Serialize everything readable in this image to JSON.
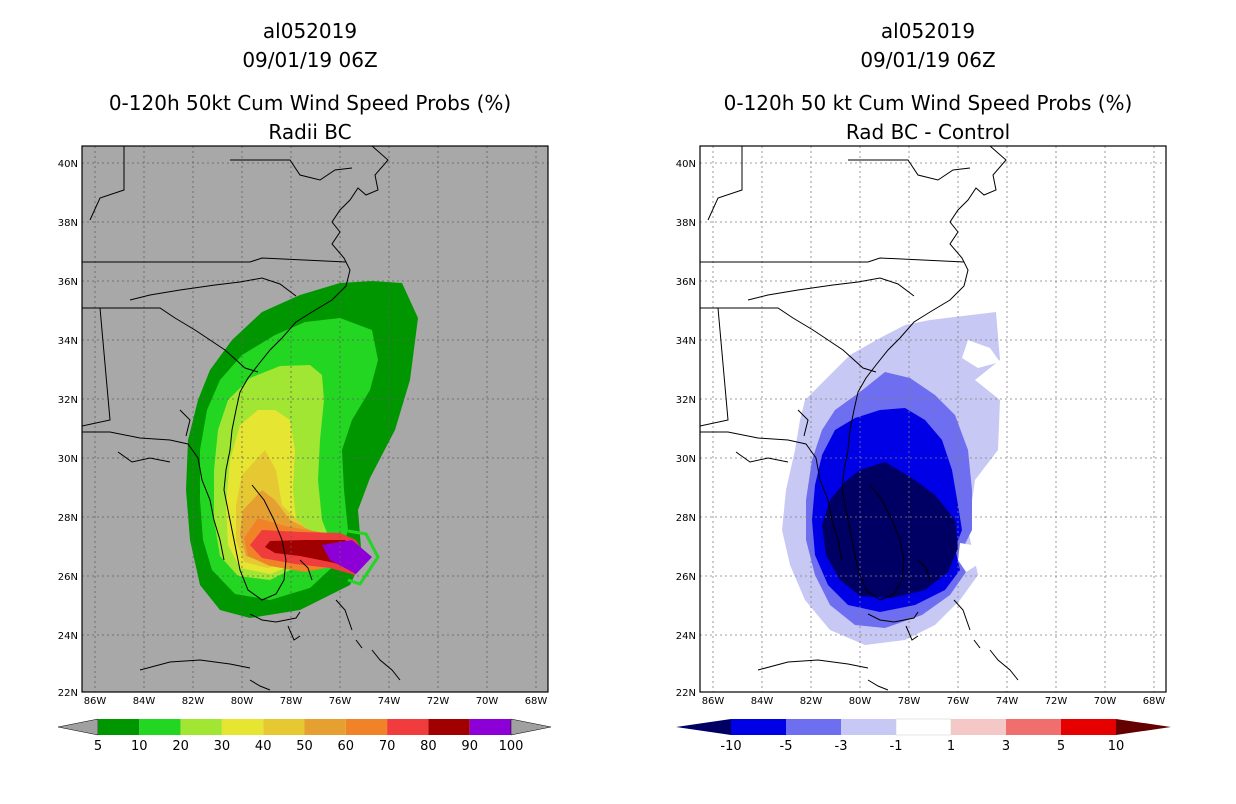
{
  "left": {
    "storm_id": "al052019",
    "datetime": "09/01/19 06Z",
    "title": "0-120h 50kt Cum Wind Speed Probs (%)",
    "subtitle": "Radii BC",
    "y_ticks": [
      "40N",
      "38N",
      "36N",
      "34N",
      "32N",
      "30N",
      "28N",
      "26N",
      "24N",
      "22N"
    ],
    "x_ticks": [
      "86W",
      "84W",
      "82W",
      "80W",
      "78W",
      "76W",
      "74W",
      "72W",
      "70W",
      "68W"
    ],
    "colorbar": {
      "labels": [
        "5",
        "10",
        "20",
        "30",
        "40",
        "50",
        "60",
        "70",
        "80",
        "90",
        "100"
      ],
      "colors": [
        "#009600",
        "#22d622",
        "#a0e632",
        "#e6e632",
        "#e6c832",
        "#e6a032",
        "#f08228",
        "#f03c3c",
        "#a00000",
        "#8c00d7"
      ],
      "under_color": "#a0a0a0",
      "over_color": "#a0a0a0"
    },
    "background_color": "#a8a8a8"
  },
  "right": {
    "storm_id": "al052019",
    "datetime": "09/01/19 06Z",
    "title": "0-120h 50 kt Cum Wind Speed Probs (%)",
    "subtitle": "Rad BC - Control",
    "y_ticks": [
      "40N",
      "38N",
      "36N",
      "34N",
      "32N",
      "30N",
      "28N",
      "26N",
      "24N",
      "22N"
    ],
    "x_ticks": [
      "86W",
      "84W",
      "82W",
      "80W",
      "78W",
      "76W",
      "74W",
      "72W",
      "70W",
      "68W"
    ],
    "colorbar": {
      "labels": [
        "-10",
        "-5",
        "-3",
        "-1",
        "1",
        "3",
        "5",
        "10"
      ],
      "colors": [
        "#0000e6",
        "#6e6ef0",
        "#c8c8f5",
        "#ffffff",
        "#f5c8c8",
        "#f06e6e",
        "#e60000"
      ],
      "under_color": "#000064",
      "over_color": "#640000"
    },
    "background_color": "#ffffff"
  }
}
